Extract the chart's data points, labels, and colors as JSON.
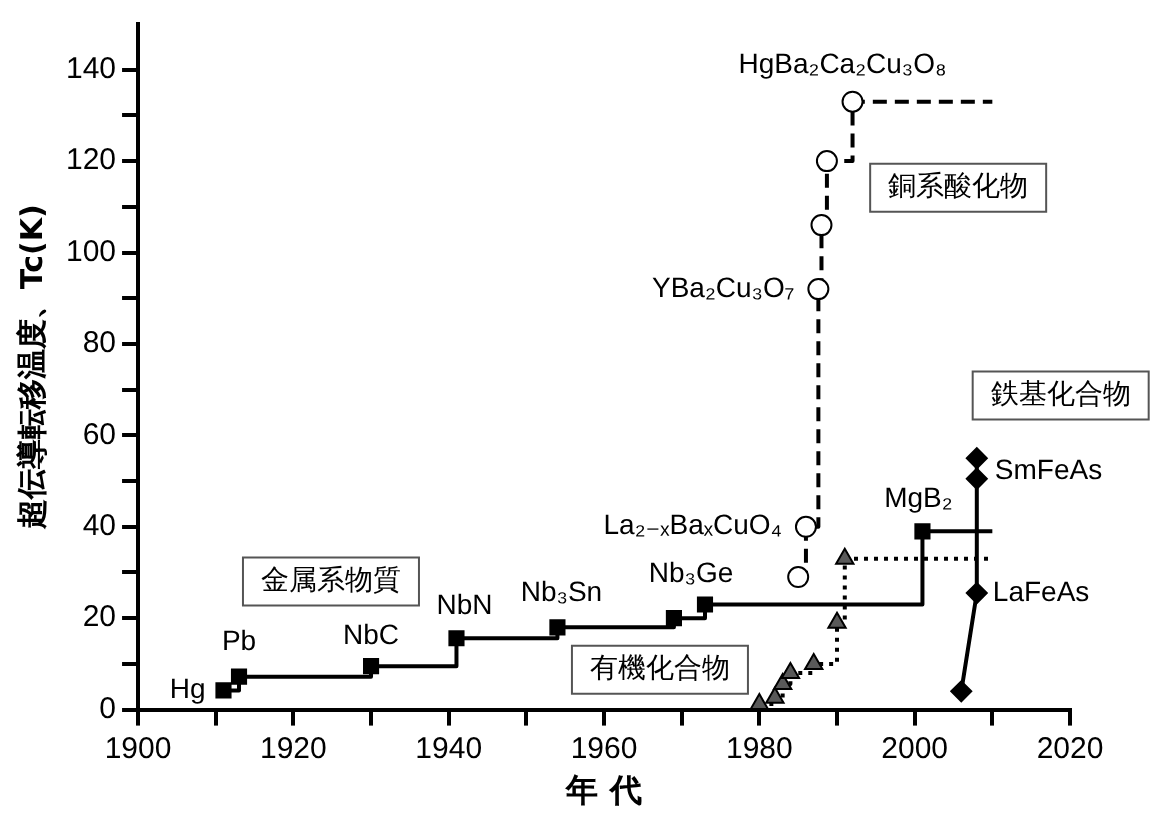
{
  "chart_data": {
    "type": "scatter",
    "xlabel": "年 代",
    "ylabel": "超伝導転移温度、Tc(K)",
    "xlim": [
      1900,
      2020
    ],
    "xticks": [
      1900,
      {
        "value": 1910,
        "label": null
      },
      1920,
      {
        "value": 1930,
        "label": null
      },
      1940,
      {
        "value": 1950,
        "label": null
      },
      1960,
      {
        "value": 1970,
        "label": null
      },
      1980,
      {
        "value": 1990,
        "label": null
      },
      2000,
      {
        "value": 2010,
        "label": null
      },
      2020
    ],
    "ylim": [
      0,
      150
    ],
    "yticks": [
      0,
      {
        "value": 10,
        "label": null
      },
      20,
      {
        "value": 30,
        "label": null
      },
      40,
      {
        "value": 50,
        "label": null
      },
      60,
      {
        "value": 70,
        "label": null
      },
      80,
      {
        "value": 90,
        "label": null
      },
      100,
      {
        "value": 110,
        "label": null
      },
      120,
      {
        "value": 130,
        "label": null
      },
      140
    ],
    "grid": false,
    "legend": false,
    "series": [
      {
        "type": "step",
        "color": "#000000",
        "marker": "none",
        "line_style": "solid",
        "x": [
          1911,
          1913,
          1930,
          1941,
          1954,
          1969,
          1973,
          2001,
          2010
        ],
        "values": [
          4.2,
          7.2,
          9.5,
          15.6,
          18,
          20,
          23,
          39,
          39
        ]
      },
      {
        "type": "step",
        "color": "#000000",
        "marker": "none",
        "line_style": "dashed",
        "x": [
          1985,
          1986,
          1987.6,
          1988,
          1988.7,
          1992,
          2010
        ],
        "values": [
          29,
          40,
          92,
          106,
          120,
          133,
          133
        ]
      },
      {
        "type": "step",
        "color": "#000000",
        "marker": "none",
        "line_style": "dotted",
        "x": [
          1980,
          1982,
          1983,
          1984,
          1987,
          1990,
          1991,
          2010
        ],
        "values": [
          1.2,
          2.6,
          5.6,
          8,
          10,
          19,
          33,
          33
        ]
      },
      {
        "type": "scatter",
        "name": "金属系物質",
        "color": "#000000",
        "marker": "square",
        "x": [
          1911,
          1913,
          1930,
          1941,
          1954,
          1969,
          1973,
          2001
        ],
        "values": [
          4.2,
          7.2,
          9.5,
          15.6,
          18,
          20,
          23,
          39
        ],
        "value_labels": [
          "Hg",
          "Pb",
          "NbC",
          "NbN",
          "Nb₃Sn",
          null,
          "Nb₃Ge",
          "MgB₂"
        ]
      },
      {
        "type": "scatter",
        "name": "銅系酸化物",
        "color": "#ffffff",
        "marker": "circle",
        "x": [
          1985,
          1986,
          1987.6,
          1988,
          1988.7,
          1992
        ],
        "values": [
          29,
          40,
          92,
          106,
          120,
          133
        ],
        "value_labels": [
          null,
          "La₂₋ₓBaₓCuO₄",
          "YBa₂Cu₃O₇",
          null,
          null,
          "HgBa₂Ca₂Cu₃O₈"
        ]
      },
      {
        "type": "scatter",
        "name": "有機化合物",
        "color": "#595959",
        "marker": "triangle",
        "x": [
          1980,
          1982,
          1983,
          1984,
          1987,
          1990,
          1991
        ],
        "values": [
          1.2,
          2.6,
          5.6,
          8,
          10,
          19,
          33
        ]
      },
      {
        "type": "line",
        "name": "鉄基化合物",
        "color": "#000000",
        "marker": "diamond",
        "line_style": "solid",
        "x": [
          2006,
          2008,
          2008,
          2008
        ],
        "values": [
          4,
          25.5,
          50.5,
          55
        ],
        "value_labels": [
          null,
          "LaFeAs",
          "SmFeAs",
          null
        ]
      }
    ]
  }
}
